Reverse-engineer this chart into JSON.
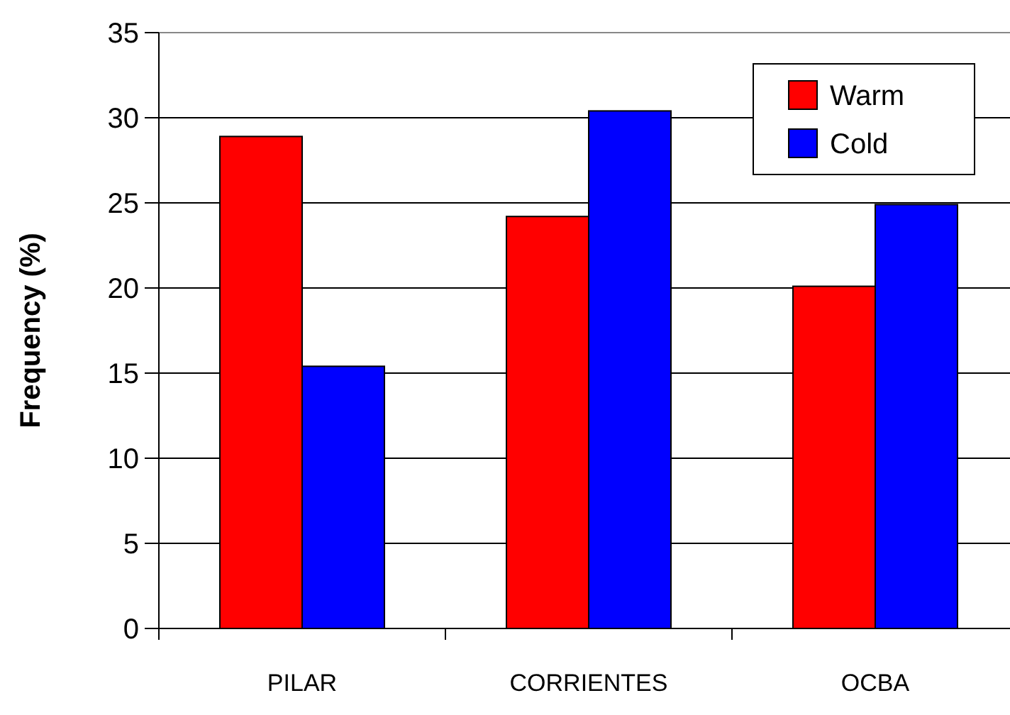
{
  "chart_data": {
    "type": "bar",
    "ylabel": "Frequency (%)",
    "categories": [
      "PILAR",
      "CORRIENTES",
      "OCBA"
    ],
    "series": [
      {
        "name": "Warm",
        "color": "#ff0000",
        "values": [
          28.9,
          24.2,
          20.1
        ]
      },
      {
        "name": "Cold",
        "color": "#0000ff",
        "values": [
          15.4,
          30.4,
          24.9
        ]
      }
    ],
    "ylim": [
      0,
      35
    ],
    "yticks": [
      0,
      5,
      10,
      15,
      20,
      25,
      30,
      35
    ],
    "grid": "y",
    "legend": "top right"
  }
}
